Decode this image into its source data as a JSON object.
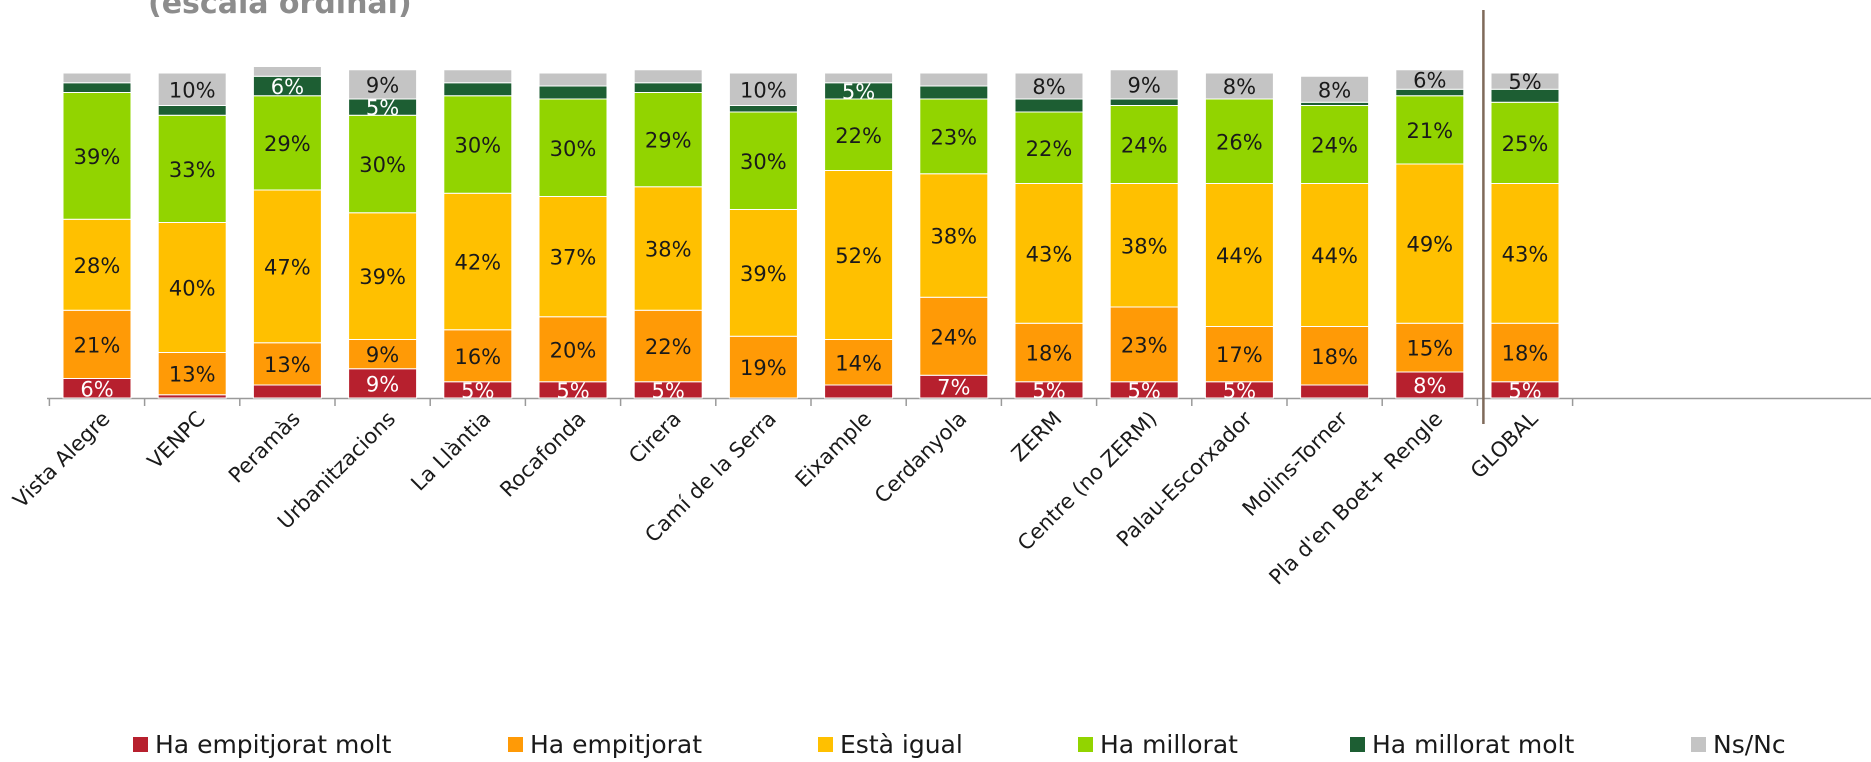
{
  "chart_data": {
    "type": "bar",
    "stacked": true,
    "title": "(escala ordinal)",
    "categories": [
      "Vista Alegre",
      "VENPC",
      "Peramàs",
      "Urbanitzacions",
      "La Llàntia",
      "Rocafonda",
      "Cirera",
      "Camí de la Serra",
      "Eixample",
      "Cerdanyola",
      "ZERM",
      "Centre (no ZERM)",
      "Palau-Escorxador",
      "Molins-Torner",
      "Pla d'en Boet+ Rengle",
      "GLOBAL"
    ],
    "ylim": [
      0,
      100
    ],
    "grid": false,
    "legend_position": "bottom",
    "series": [
      {
        "name": "Ha empitjorat molt",
        "color": "#b7202e",
        "label_color": "#ffffff",
        "values": [
          6,
          1,
          4,
          9,
          5,
          5,
          5,
          0,
          4,
          7,
          5,
          5,
          5,
          4,
          8,
          5
        ],
        "labels": [
          "6%",
          "",
          "",
          "9%",
          "5%",
          "5%",
          "5%",
          "",
          "",
          "7%",
          "5%",
          "5%",
          "5%",
          "",
          "8%",
          "5%"
        ]
      },
      {
        "name": "Ha empitjorat",
        "color": "#ff9a06",
        "label_color": "#1a1a1a",
        "values": [
          21,
          13,
          13,
          9,
          16,
          20,
          22,
          19,
          14,
          24,
          18,
          23,
          17,
          18,
          15,
          18
        ],
        "labels": [
          "21%",
          "13%",
          "13%",
          "9%",
          "16%",
          "20%",
          "22%",
          "19%",
          "14%",
          "24%",
          "18%",
          "23%",
          "17%",
          "18%",
          "15%",
          "18%"
        ]
      },
      {
        "name": "Està igual",
        "color": "#ffc000",
        "label_color": "#1a1a1a",
        "values": [
          28,
          40,
          47,
          39,
          42,
          37,
          38,
          39,
          52,
          38,
          43,
          38,
          44,
          44,
          49,
          43
        ],
        "labels": [
          "28%",
          "40%",
          "47%",
          "39%",
          "42%",
          "37%",
          "38%",
          "39%",
          "52%",
          "38%",
          "43%",
          "38%",
          "44%",
          "44%",
          "49%",
          "43%"
        ]
      },
      {
        "name": "Ha millorat",
        "color": "#92d400",
        "label_color": "#1a1a1a",
        "values": [
          39,
          33,
          29,
          30,
          30,
          30,
          29,
          30,
          22,
          23,
          22,
          24,
          26,
          24,
          21,
          25
        ],
        "labels": [
          "39%",
          "33%",
          "29%",
          "30%",
          "30%",
          "30%",
          "29%",
          "30%",
          "22%",
          "23%",
          "22%",
          "24%",
          "26%",
          "24%",
          "21%",
          "25%"
        ]
      },
      {
        "name": "Ha millorat molt",
        "color": "#1d5e33",
        "label_color": "#ffffff",
        "values": [
          3,
          3,
          6,
          5,
          4,
          4,
          3,
          2,
          5,
          4,
          4,
          2,
          0,
          1,
          2,
          4
        ],
        "labels": [
          "",
          "",
          "6%",
          "5%",
          "",
          "",
          "",
          "",
          "5%",
          "",
          "",
          "",
          "",
          "",
          "",
          ""
        ]
      },
      {
        "name": "Ns/Nc",
        "color": "#c4c4c4",
        "label_color": "#1a1a1a",
        "values": [
          3,
          10,
          3,
          9,
          4,
          4,
          4,
          10,
          3,
          4,
          8,
          9,
          8,
          8,
          6,
          5
        ],
        "labels": [
          "",
          "10%",
          "",
          "9%",
          "",
          "",
          "",
          "10%",
          "",
          "",
          "8%",
          "9%",
          "8%",
          "8%",
          "6%",
          "5%"
        ]
      }
    ]
  }
}
